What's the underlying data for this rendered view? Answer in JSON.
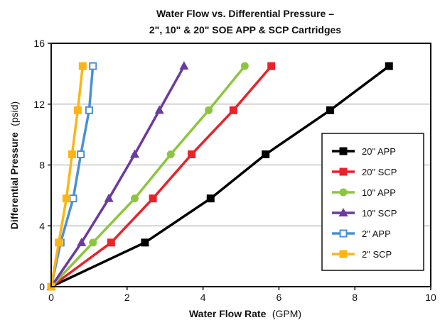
{
  "chart_data": {
    "type": "line",
    "title_line1": "Water Flow vs. Differential Pressure –",
    "title_line2": "2\", 10\" & 20\" SOE APP & SCP Cartridges",
    "xlabel_bold": "Water Flow Rate",
    "xlabel_unit": "(GPM)",
    "ylabel_bold": "Differential Pressure",
    "ylabel_unit": "(psid)",
    "xlim": [
      0,
      10
    ],
    "ylim": [
      0,
      16
    ],
    "xticks": [
      0,
      2,
      4,
      6,
      8,
      10
    ],
    "yticks": [
      0,
      4,
      8,
      12,
      16
    ],
    "grid": "horizontal",
    "legend_position": "right",
    "series": [
      {
        "name": "20\" APP",
        "color": "#000000",
        "marker": "square-filled",
        "x": [
          0,
          2.47,
          4.2,
          5.65,
          7.35,
          8.9
        ],
        "y": [
          0,
          2.9,
          5.8,
          8.7,
          11.6,
          14.5
        ]
      },
      {
        "name": "20\" SCP",
        "color": "#e8232a",
        "marker": "square-filled",
        "x": [
          0,
          1.58,
          2.68,
          3.7,
          4.8,
          5.8
        ],
        "y": [
          0,
          2.9,
          5.8,
          8.7,
          11.6,
          14.5
        ]
      },
      {
        "name": "10\" APP",
        "color": "#8cc63f",
        "marker": "circle",
        "x": [
          0,
          1.1,
          2.2,
          3.15,
          4.15,
          5.1
        ],
        "y": [
          0,
          2.9,
          5.8,
          8.7,
          11.6,
          14.5
        ]
      },
      {
        "name": "10\" SCP",
        "color": "#6a3aa0",
        "marker": "triangle",
        "x": [
          0,
          0.8,
          1.52,
          2.2,
          2.85,
          3.5
        ],
        "y": [
          0,
          2.9,
          5.8,
          8.7,
          11.6,
          14.5
        ]
      },
      {
        "name": "2\" APP",
        "color": "#4a90d9",
        "marker": "square-open",
        "x": [
          0,
          0.25,
          0.58,
          0.78,
          1.0,
          1.1
        ],
        "y": [
          0,
          2.9,
          5.8,
          8.7,
          11.6,
          14.5
        ]
      },
      {
        "name": "2\" SCP",
        "color": "#fdb515",
        "marker": "square-filled",
        "x": [
          0,
          0.2,
          0.4,
          0.55,
          0.7,
          0.83
        ],
        "y": [
          0,
          2.9,
          5.8,
          8.7,
          11.6,
          14.5
        ]
      }
    ]
  }
}
